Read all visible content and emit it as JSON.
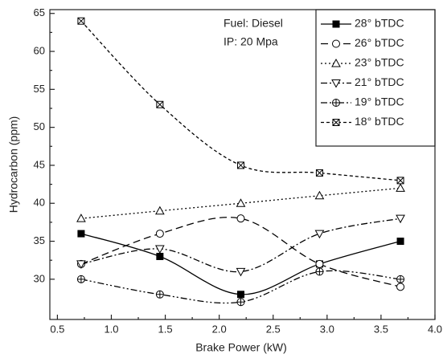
{
  "chart_data": {
    "type": "line",
    "x_label": "Brake Power (kW)",
    "y_label": "Hydrocarbon (ppm)",
    "annotations": [
      "Fuel: Diesel",
      "IP: 20 Mpa"
    ],
    "x": [
      0.72,
      1.45,
      2.2,
      2.93,
      3.68
    ],
    "xlim": [
      0.43,
      4.0
    ],
    "xticks": [
      0.5,
      {
        "value": 1,
        "label": "1.0"
      },
      1.5,
      {
        "value": 2,
        "label": "2.0"
      },
      2.5,
      {
        "value": 3,
        "label": "3.0"
      },
      3.5,
      {
        "value": 4,
        "label": "4.0"
      }
    ],
    "ylim": [
      24.7,
      65.5
    ],
    "yticks": [
      30,
      35,
      40,
      45,
      50,
      55,
      60,
      65
    ],
    "legend": "upper right",
    "series": [
      {
        "name": "28° bTDC",
        "color": "#000000",
        "marker": "square-filled",
        "dash": "solid",
        "values": [
          36,
          33,
          28,
          32,
          35
        ]
      },
      {
        "name": "26° bTDC",
        "color": "#000000",
        "marker": "circle",
        "dash": "long-dash",
        "values": [
          32,
          36,
          38,
          32,
          29
        ]
      },
      {
        "name": "23° bTDC",
        "color": "#000000",
        "marker": "triangle-up",
        "dash": "dot",
        "values": [
          38,
          39,
          40,
          41,
          42
        ]
      },
      {
        "name": "21° bTDC",
        "color": "#000000",
        "marker": "triangle-down",
        "dash": "dash-dot",
        "values": [
          32,
          34,
          31,
          36,
          38
        ]
      },
      {
        "name": "19° bTDC",
        "color": "#000000",
        "marker": "circle-plus",
        "dash": "dash-dot-dot",
        "values": [
          30,
          28,
          27,
          31,
          30
        ]
      },
      {
        "name": "18° bTDC",
        "color": "#000000",
        "marker": "square-x",
        "dash": "short-dash",
        "values": [
          64,
          53,
          45,
          44,
          43
        ]
      }
    ]
  }
}
